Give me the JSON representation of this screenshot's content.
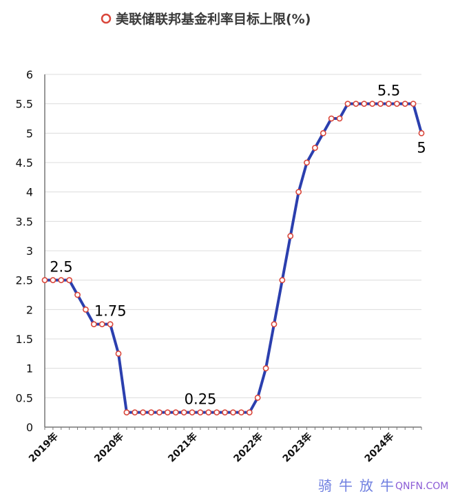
{
  "chart_data": {
    "type": "line",
    "title": "美联储联邦基金利率目标上限(%)",
    "legend": {
      "entries": [
        "美联储联邦基金利率目标上限(%)"
      ],
      "placement": "top-center"
    },
    "xlabel": "",
    "ylabel": "",
    "ylim": [
      0,
      6
    ],
    "yticks": [
      "0",
      "0.5",
      "1",
      "1.5",
      "2",
      "2.5",
      "3",
      "3.5",
      "4",
      "4.5",
      "5",
      "5.5",
      "6"
    ],
    "grid": true,
    "x_tick_labels": [
      {
        "index": 0,
        "label": "2019年"
      },
      {
        "index": 8,
        "label": "2020年"
      },
      {
        "index": 17,
        "label": "2021年"
      },
      {
        "index": 25,
        "label": "2022年"
      },
      {
        "index": 31,
        "label": "2023年"
      },
      {
        "index": 41,
        "label": "2024年"
      }
    ],
    "series": [
      {
        "name": "美联储联邦基金利率目标上限(%)",
        "color": "#2b3fae",
        "marker_color": "#d9463a",
        "values": [
          2.5,
          2.5,
          2.5,
          2.5,
          2.25,
          2.0,
          1.75,
          1.75,
          1.75,
          1.25,
          0.25,
          0.25,
          0.25,
          0.25,
          0.25,
          0.25,
          0.25,
          0.25,
          0.25,
          0.25,
          0.25,
          0.25,
          0.25,
          0.25,
          0.25,
          0.25,
          0.5,
          1.0,
          1.75,
          2.5,
          3.25,
          4.0,
          4.5,
          4.75,
          5.0,
          5.25,
          5.25,
          5.5,
          5.5,
          5.5,
          5.5,
          5.5,
          5.5,
          5.5,
          5.5,
          5.5,
          5.0
        ]
      }
    ],
    "annotations": [
      {
        "index": 1,
        "value": 2.5,
        "text": "2.5",
        "position": "above"
      },
      {
        "index": 7,
        "value": 1.75,
        "text": "1.75",
        "position": "above"
      },
      {
        "index": 18,
        "value": 0.25,
        "text": "0.25",
        "position": "above"
      },
      {
        "index": 41,
        "value": 5.5,
        "text": "5.5",
        "position": "above"
      },
      {
        "index": 46,
        "value": 5.0,
        "text": "5",
        "position": "below"
      }
    ]
  },
  "watermark": {
    "cn": "骑牛放牛",
    "en": "QNFN.COM"
  }
}
